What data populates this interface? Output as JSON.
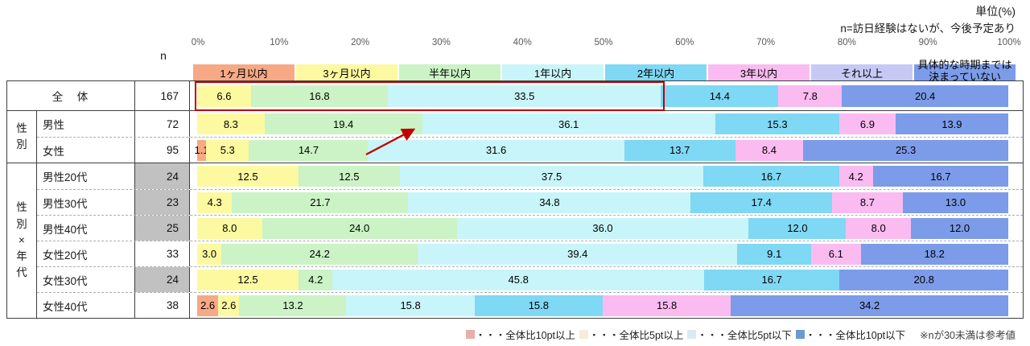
{
  "top_notes": {
    "unit": "単位(%)",
    "n_definition": "n=訪日経験はないが、今後予定あり"
  },
  "axis_ticks": [
    "0%",
    "10%",
    "20%",
    "30%",
    "40%",
    "50%",
    "60%",
    "70%",
    "80%",
    "90%",
    "100%"
  ],
  "n_column_header": "n",
  "chart_data": {
    "type": "bar",
    "stacked": true,
    "orientation": "horizontal",
    "unit": "%",
    "categories": [
      {
        "label": "1ヶ月以内",
        "color": "#F7A884"
      },
      {
        "label": "3ヶ月以内",
        "color": "#FCF9A0"
      },
      {
        "label": "半年以内",
        "color": "#CBF3C5"
      },
      {
        "label": "1年以内",
        "color": "#C8F5F9"
      },
      {
        "label": "2年以内",
        "color": "#7FD8F4"
      },
      {
        "label": "3年以内",
        "color": "#FABBF1"
      },
      {
        "label": "それ以上",
        "color": "#C7C9F5"
      },
      {
        "label": "具体的な時期までは決まっていない",
        "color": "#7C9CE9",
        "label_lines": [
          "具体的な時期までは",
          "決まっていない"
        ]
      }
    ],
    "sections": [
      {
        "group_label": "",
        "group_label_vertical": [],
        "rows": [
          {
            "label": "全　体",
            "n": 167,
            "n_gray": false,
            "highlight_box": true,
            "values": [
              null,
              6.6,
              16.8,
              33.5,
              14.4,
              7.8,
              null,
              20.4
            ]
          }
        ]
      },
      {
        "group_label": "性別",
        "group_label_vertical": [
          "性",
          "別"
        ],
        "rows": [
          {
            "label": "男性",
            "n": 72,
            "n_gray": false,
            "values": [
              null,
              8.3,
              19.4,
              36.1,
              15.3,
              6.9,
              null,
              13.9
            ]
          },
          {
            "label": "女性",
            "n": 95,
            "n_gray": false,
            "values": [
              1.1,
              5.3,
              14.7,
              31.6,
              13.7,
              8.4,
              null,
              25.3
            ]
          }
        ]
      },
      {
        "group_label": "性別×年代",
        "group_label_vertical": [
          "性",
          "別",
          "×",
          "年",
          "代"
        ],
        "rows": [
          {
            "label": "男性20代",
            "n": 24,
            "n_gray": true,
            "values": [
              null,
              12.5,
              12.5,
              37.5,
              16.7,
              4.2,
              null,
              16.7
            ]
          },
          {
            "label": "男性30代",
            "n": 23,
            "n_gray": true,
            "values": [
              null,
              4.3,
              21.7,
              34.8,
              17.4,
              8.7,
              null,
              13.0
            ]
          },
          {
            "label": "男性40代",
            "n": 25,
            "n_gray": true,
            "values": [
              null,
              8.0,
              24.0,
              36.0,
              12.0,
              8.0,
              null,
              12.0
            ]
          },
          {
            "label": "女性20代",
            "n": 33,
            "n_gray": false,
            "values": [
              null,
              3.0,
              24.2,
              39.4,
              9.1,
              6.1,
              null,
              18.2
            ]
          },
          {
            "label": "女性30代",
            "n": 24,
            "n_gray": true,
            "values": [
              null,
              12.5,
              4.2,
              45.8,
              16.7,
              null,
              null,
              20.8
            ]
          },
          {
            "label": "女性40代",
            "n": 38,
            "n_gray": false,
            "values": [
              2.6,
              2.6,
              13.2,
              15.8,
              15.8,
              15.8,
              null,
              34.2
            ]
          }
        ]
      }
    ]
  },
  "annotations": {
    "highlight_box_color": "#C00000",
    "arrow_color": "#C00000"
  },
  "bottom_legend": {
    "items": [
      {
        "color": "#E8AFAA",
        "label": "・・・全体比10pt以上"
      },
      {
        "color": "#F7EBD9",
        "label": "・・・全体比5pt以上"
      },
      {
        "color": "#DAEAF2",
        "label": "・・・全体比5pt以下"
      },
      {
        "color": "#6A9AD0",
        "label": "・・・全体比10pt以下"
      }
    ],
    "footnote": "※nが30未満は参考値"
  }
}
